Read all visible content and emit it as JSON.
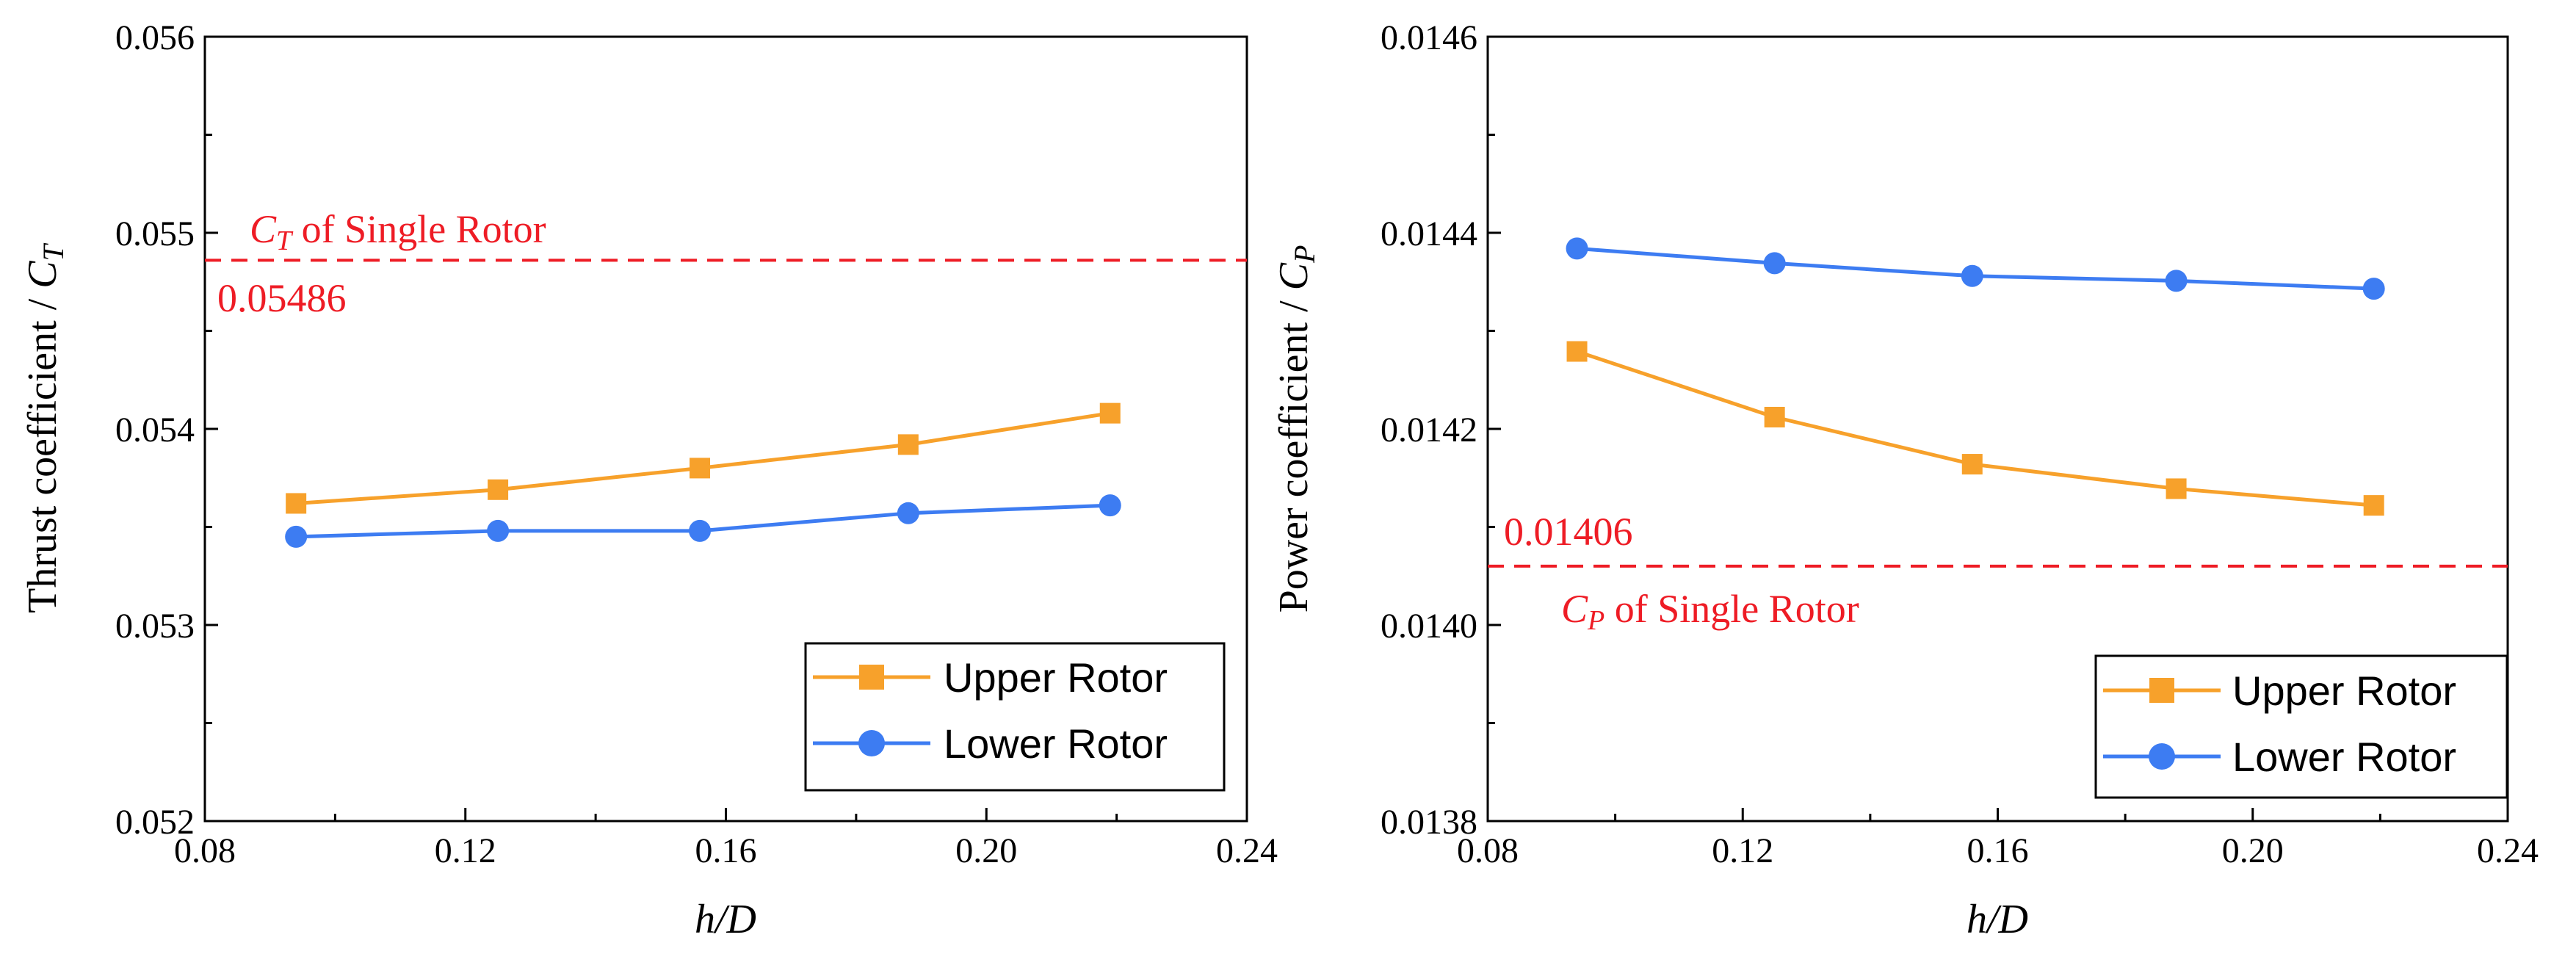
{
  "chart_data": [
    {
      "type": "line",
      "xlabel": "h/D",
      "ylabel_prefix": "Thrust coefficient / ",
      "ylabel_symbol": "C",
      "ylabel_subscript": "T",
      "xlim": [
        0.08,
        0.24
      ],
      "ylim": [
        0.052,
        0.056
      ],
      "x_ticks": [
        "0.08",
        "0.12",
        "0.16",
        "0.20",
        "0.24"
      ],
      "y_ticks": [
        "0.052",
        "0.053",
        "0.054",
        "0.055",
        "0.056"
      ],
      "x": [
        0.094,
        0.125,
        0.156,
        0.188,
        0.219
      ],
      "series": [
        {
          "name": "Upper Rotor",
          "color": "#f7a12b",
          "marker": "square",
          "values": [
            0.05362,
            0.05369,
            0.0538,
            0.05392,
            0.05408
          ]
        },
        {
          "name": "Lower Rotor",
          "color": "#3d7cf2",
          "marker": "circle",
          "values": [
            0.05345,
            0.05348,
            0.05348,
            0.05357,
            0.05361
          ]
        }
      ],
      "reference_line": {
        "value": 0.05486,
        "color": "#ee1c25",
        "label_symbol": "C",
        "label_subscript": "T",
        "label_text": " of Single Rotor",
        "value_label": "0.05486"
      },
      "legend_position": "bottom-right"
    },
    {
      "type": "line",
      "xlabel": "h/D",
      "ylabel_prefix": "Power coefficient / ",
      "ylabel_symbol": "C",
      "ylabel_subscript": "P",
      "xlim": [
        0.08,
        0.24
      ],
      "ylim": [
        0.0138,
        0.0146
      ],
      "x_ticks": [
        "0.08",
        "0.12",
        "0.16",
        "0.20",
        "0.24"
      ],
      "y_ticks": [
        "0.0138",
        "0.0140",
        "0.0142",
        "0.0144",
        "0.0146"
      ],
      "x": [
        0.094,
        0.125,
        0.156,
        0.188,
        0.219
      ],
      "series": [
        {
          "name": "Upper Rotor",
          "color": "#f7a12b",
          "marker": "square",
          "values": [
            0.014279,
            0.014212,
            0.014164,
            0.014139,
            0.014122
          ]
        },
        {
          "name": "Lower Rotor",
          "color": "#3d7cf2",
          "marker": "circle",
          "values": [
            0.014384,
            0.014369,
            0.014356,
            0.014351,
            0.014343
          ]
        }
      ],
      "reference_line": {
        "value": 0.01406,
        "color": "#ee1c25",
        "label_symbol": "C",
        "label_subscript": "P",
        "label_text": " of Single Rotor",
        "value_label": "0.01406"
      },
      "legend_position": "bottom-right"
    }
  ]
}
